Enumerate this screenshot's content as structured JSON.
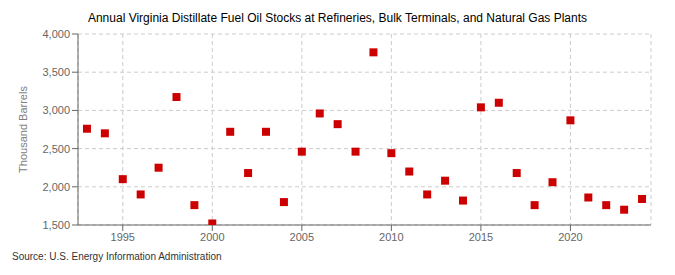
{
  "chart_data": {
    "type": "scatter",
    "title": "Annual Virginia Distillate Fuel Oil Stocks at Refineries, Bulk Terminals, and Natural Gas Plants",
    "ylabel": "Thousand Barrels",
    "annotations": [
      "Source: U.S. Energy Information Administration"
    ],
    "x": [
      1993,
      1994,
      1995,
      1996,
      1997,
      1998,
      1999,
      2000,
      2001,
      2002,
      2003,
      2004,
      2005,
      2006,
      2007,
      2008,
      2009,
      2010,
      2011,
      2012,
      2013,
      2014,
      2015,
      2016,
      2017,
      2018,
      2019,
      2020,
      2021,
      2022,
      2023,
      2024
    ],
    "values": [
      2760,
      2700,
      2100,
      1900,
      2250,
      3175,
      1760,
      1520,
      2720,
      2180,
      2720,
      1800,
      2460,
      2960,
      2820,
      2460,
      3760,
      2440,
      2200,
      1900,
      2080,
      1820,
      3040,
      3100,
      2180,
      1760,
      2060,
      2870,
      1860,
      1760,
      1700,
      1840
    ],
    "color": "#cc0000",
    "marker": "square",
    "xlim": [
      1992.5,
      2024.5
    ],
    "xticks": [
      1995,
      2000,
      2005,
      2010,
      2015,
      2020
    ],
    "ylim": [
      1500,
      4000
    ],
    "yticks": [
      {
        "value": 1500,
        "label": "1,500"
      },
      {
        "value": 2000,
        "label": "2,000"
      },
      {
        "value": 2500,
        "label": "2,500"
      },
      {
        "value": 3000,
        "label": "3,000"
      },
      {
        "value": 3500,
        "label": "3,500"
      },
      {
        "value": 4000,
        "label": "4,000"
      }
    ],
    "grid": true
  }
}
